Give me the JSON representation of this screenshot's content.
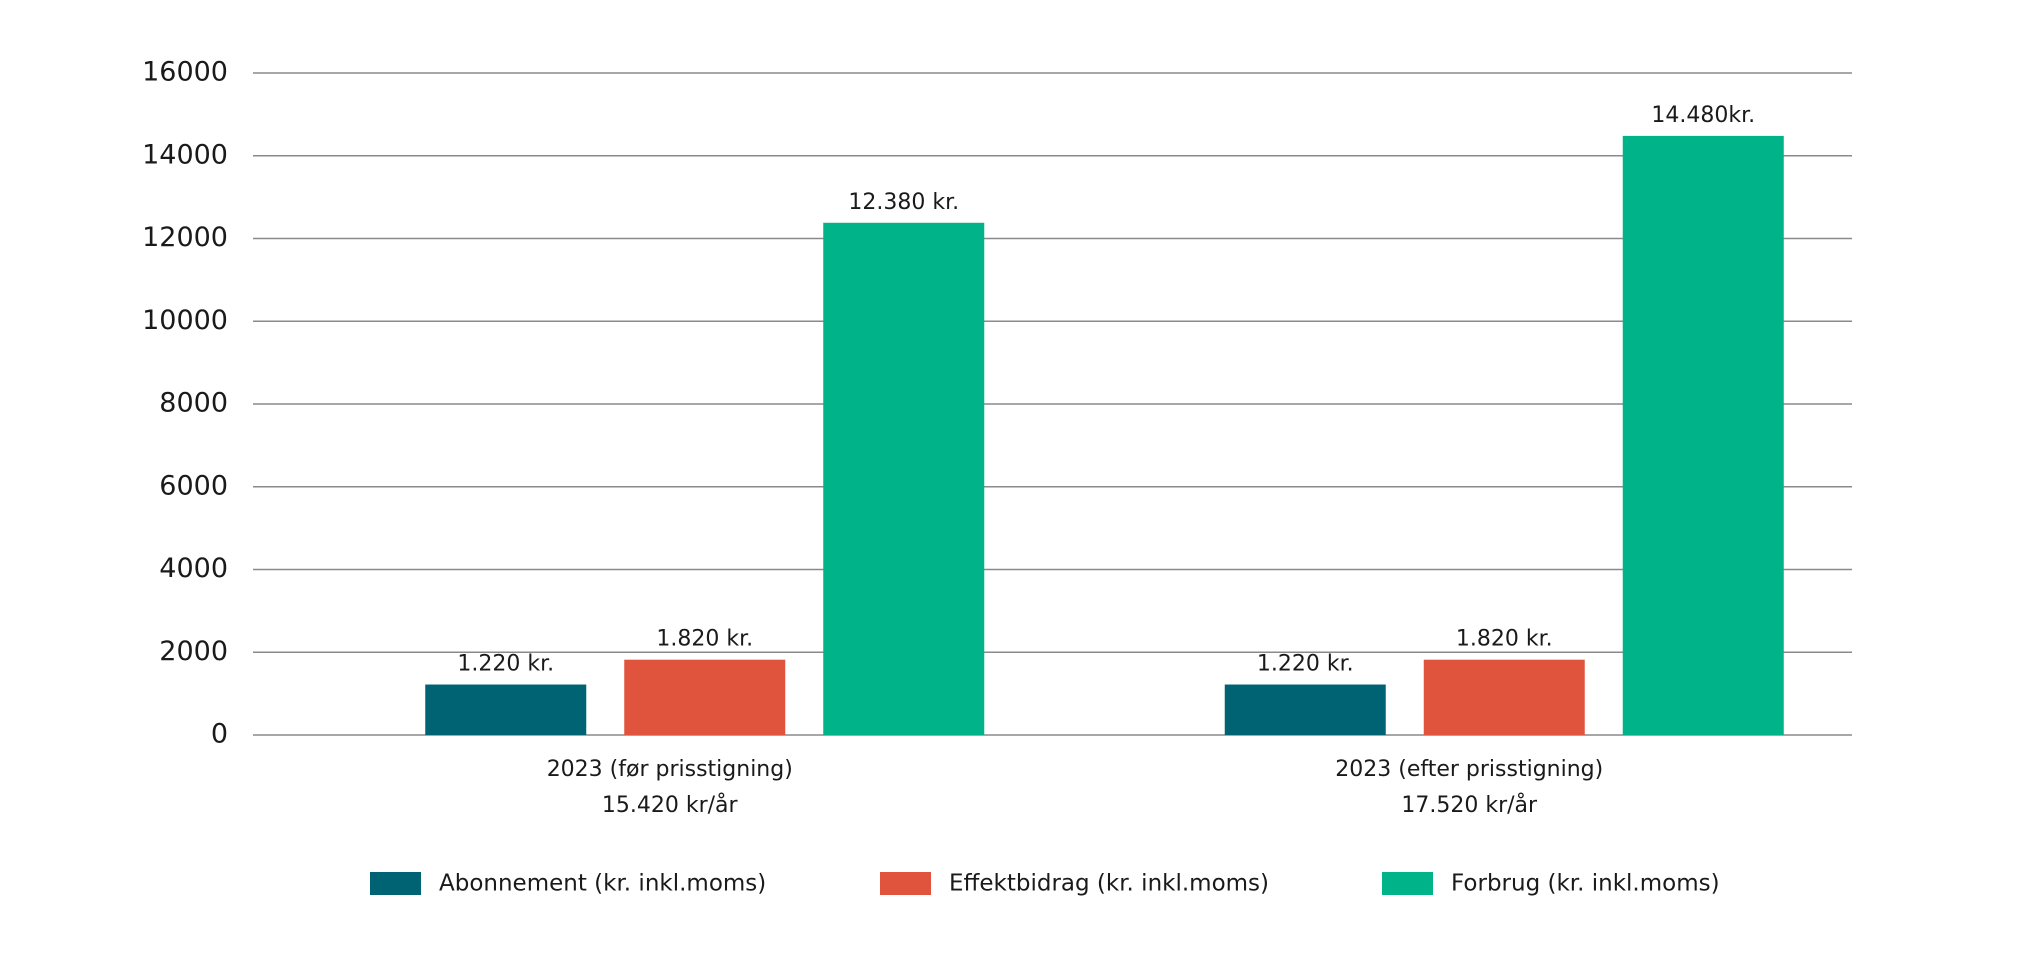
{
  "chart_data": {
    "type": "bar",
    "categories": [
      "2023 (før prisstigning)",
      "2023 (efter prisstigning)"
    ],
    "category_totals": [
      "15.420 kr/år",
      "17.520 kr/år"
    ],
    "series": [
      {
        "name": "Abonnement (kr. inkl.moms)",
        "color": "#006374",
        "values": [
          1220,
          1220
        ],
        "value_labels": [
          "1.220 kr.",
          "1.220 kr."
        ]
      },
      {
        "name": "Effektbidrag (kr. inkl.moms)",
        "color": "#e0533d",
        "values": [
          1820,
          1820
        ],
        "value_labels": [
          "1.820 kr.",
          "1.820 kr."
        ]
      },
      {
        "name": "Forbrug (kr. inkl.moms)",
        "color": "#00b388",
        "values": [
          12380,
          14480
        ],
        "value_labels": [
          "12.380 kr.",
          "14.480kr."
        ]
      }
    ],
    "ylim": [
      0,
      16000
    ],
    "yticks": [
      0,
      2000,
      4000,
      6000,
      8000,
      10000,
      12000,
      14000,
      16000
    ],
    "grid": true
  }
}
